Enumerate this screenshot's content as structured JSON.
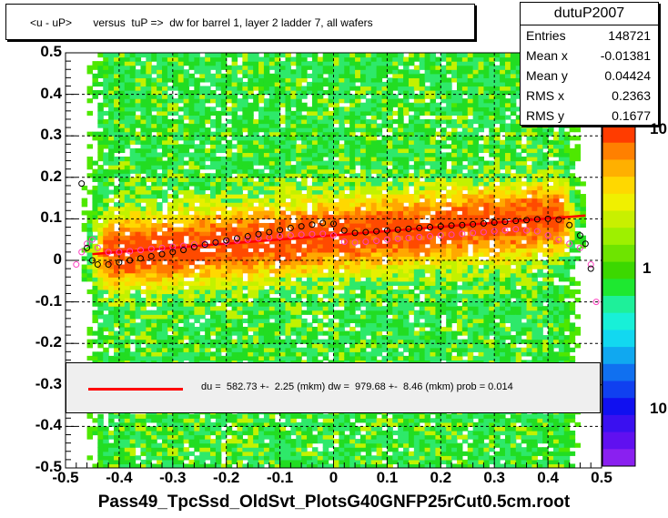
{
  "title": "<u - uP>       versus  tuP =>  dw for barrel 1, layer 2 ladder 7, all wafers",
  "stats": {
    "name": "dutuP2007",
    "rows": [
      {
        "label": "Entries",
        "value": "148721"
      },
      {
        "label": "Mean x",
        "value": "-0.01381"
      },
      {
        "label": "Mean y",
        "value": "0.04424"
      },
      {
        "label": "RMS x",
        "value": "0.2363"
      },
      {
        "label": "RMS y",
        "value": "0.1677"
      }
    ]
  },
  "fit_legend": "du =  582.73 +-  2.25 (mkm) dw =  979.68 +-  8.46 (mkm) prob = 0.014",
  "x_axis_title": "Pass49_TpcSsd_OldSvt_PlotsG40GNFP25rCut0.5cm.root",
  "colors": {
    "fit_line": "#ff0000",
    "profile_black": "#000000",
    "profile_magenta": "#ff40c0",
    "legend_bg": "#efefef"
  },
  "chart_data": {
    "type": "heatmap",
    "title": "<u - uP>       versus  tuP =>  dw for barrel 1, layer 2 ladder 7, all wafers",
    "xlabel": "Pass49_TpcSsd_OldSvt_PlotsG40GNFP25rCut0.5cm.root",
    "ylabel": "",
    "xlim": [
      -0.5,
      0.5
    ],
    "ylim": [
      -0.5,
      0.5
    ],
    "grid": true,
    "z_scale": "log",
    "x_ticks": [
      "-0.5",
      "-0.4",
      "-0.3",
      "-0.2",
      "-0.1",
      "0",
      "0.1",
      "0.2",
      "0.3",
      "0.4",
      "0.5"
    ],
    "y_ticks": [
      "-0.5",
      "-0.4",
      "-0.3",
      "-0.2",
      "-0.1",
      "0",
      "0.1",
      "0.2",
      "0.3",
      "0.4",
      "0.5"
    ],
    "z_ticks": [
      "10",
      "1",
      "10"
    ],
    "fit_line": {
      "x": [
        -0.45,
        0.47
      ],
      "y": [
        0.015,
        0.108
      ]
    },
    "profile_black": {
      "x": [
        -0.47,
        -0.46,
        -0.45,
        -0.44,
        -0.42,
        -0.4,
        -0.38,
        -0.36,
        -0.34,
        -0.32,
        -0.3,
        -0.28,
        -0.26,
        -0.24,
        -0.22,
        -0.2,
        -0.18,
        -0.16,
        -0.14,
        -0.12,
        -0.1,
        -0.08,
        -0.06,
        -0.04,
        -0.02,
        0.0,
        0.02,
        0.04,
        0.06,
        0.08,
        0.1,
        0.12,
        0.14,
        0.16,
        0.18,
        0.2,
        0.22,
        0.24,
        0.26,
        0.28,
        0.3,
        0.32,
        0.34,
        0.36,
        0.38,
        0.4,
        0.42,
        0.44,
        0.46,
        0.47,
        0.48
      ],
      "y": [
        0.185,
        0.03,
        0.0,
        -0.01,
        -0.01,
        -0.005,
        0.0,
        0.005,
        0.01,
        0.015,
        0.02,
        0.025,
        0.032,
        0.038,
        0.043,
        0.048,
        0.053,
        0.058,
        0.063,
        0.068,
        0.073,
        0.078,
        0.082,
        0.086,
        0.09,
        0.088,
        0.072,
        0.066,
        0.068,
        0.07,
        0.072,
        0.074,
        0.076,
        0.078,
        0.08,
        0.082,
        0.084,
        0.085,
        0.087,
        0.089,
        0.091,
        0.093,
        0.095,
        0.097,
        0.099,
        0.1,
        0.098,
        0.085,
        0.06,
        0.04,
        -0.02
      ]
    },
    "profile_magenta": {
      "x": [
        -0.48,
        -0.47,
        -0.46,
        -0.45,
        -0.44,
        -0.42,
        -0.4,
        -0.38,
        -0.36,
        -0.34,
        -0.32,
        -0.3,
        -0.28,
        -0.26,
        -0.24,
        -0.22,
        -0.2,
        -0.18,
        -0.16,
        -0.14,
        -0.12,
        -0.1,
        -0.08,
        -0.06,
        -0.04,
        -0.02,
        0.0,
        0.02,
        0.04,
        0.06,
        0.08,
        0.1,
        0.12,
        0.14,
        0.16,
        0.18,
        0.2,
        0.22,
        0.24,
        0.26,
        0.28,
        0.3,
        0.32,
        0.34,
        0.36,
        0.38,
        0.4,
        0.42,
        0.44,
        0.46,
        0.48,
        0.49
      ],
      "y": [
        -0.01,
        0.02,
        0.04,
        0.05,
        0.03,
        0.02,
        0.02,
        0.022,
        0.025,
        0.028,
        0.03,
        0.033,
        0.035,
        0.038,
        0.04,
        0.042,
        0.045,
        0.048,
        0.05,
        0.053,
        0.055,
        0.058,
        0.06,
        0.062,
        0.063,
        0.064,
        0.06,
        0.045,
        0.043,
        0.045,
        0.047,
        0.05,
        0.052,
        0.054,
        0.056,
        0.058,
        0.06,
        0.062,
        0.064,
        0.066,
        0.068,
        0.07,
        0.072,
        0.075,
        0.072,
        0.07,
        0.06,
        0.05,
        0.04,
        0.03,
        -0.01,
        -0.1
      ]
    }
  }
}
